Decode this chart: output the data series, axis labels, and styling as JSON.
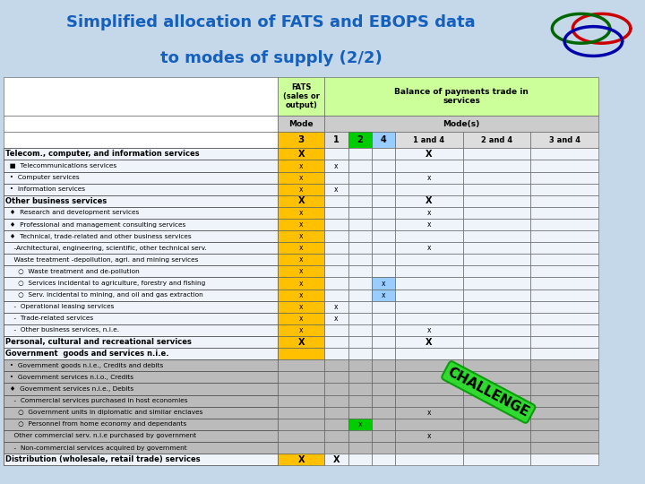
{
  "title_line1": "Simplified allocation of FATS and EBOPS data",
  "title_line2": "to modes of supply (2/2)",
  "title_color": "#1560BD",
  "bg_color": "#C5D8EA",
  "header_green": "#CCFF99",
  "header_gray": "#CCCCCC",
  "col_orange": "#FFC000",
  "col_green_bright": "#00CC00",
  "col_blue_light": "#99CCFF",
  "rows": [
    {
      "label": "Telecom., computer, and information services",
      "bold": true,
      "gray": false,
      "cols": [
        "X",
        "",
        "",
        "",
        "X",
        "",
        ""
      ]
    },
    {
      "label": "  ■  Telecommunications services",
      "bold": false,
      "gray": false,
      "cols": [
        "x",
        "x",
        "",
        "",
        "",
        "",
        ""
      ]
    },
    {
      "label": "  •  Computer services",
      "bold": false,
      "gray": false,
      "cols": [
        "x",
        "",
        "",
        "",
        "x",
        "",
        ""
      ]
    },
    {
      "label": "  •  Information services",
      "bold": false,
      "gray": false,
      "cols": [
        "x",
        "x",
        "",
        "",
        "",
        "",
        ""
      ]
    },
    {
      "label": "Other business services",
      "bold": true,
      "gray": false,
      "cols": [
        "X",
        "",
        "",
        "",
        "X",
        "",
        ""
      ]
    },
    {
      "label": "  ♦  Research and development services",
      "bold": false,
      "gray": false,
      "cols": [
        "x",
        "",
        "",
        "",
        "x",
        "",
        ""
      ]
    },
    {
      "label": "  ♦  Professional and management consulting services",
      "bold": false,
      "gray": false,
      "cols": [
        "x",
        "",
        "",
        "",
        "x",
        "",
        ""
      ]
    },
    {
      "label": "  ♦  Technical, trade-related and other business services",
      "bold": false,
      "gray": false,
      "cols": [
        "x",
        "",
        "",
        "",
        "",
        "",
        ""
      ]
    },
    {
      "label": "    -Architectural, engineering, scientific, other technical serv.",
      "bold": false,
      "gray": false,
      "cols": [
        "x",
        "",
        "",
        "",
        "x",
        "",
        ""
      ]
    },
    {
      "label": "    Waste treatment -depollution, agri. and mining services",
      "bold": false,
      "gray": false,
      "cols": [
        "x",
        "",
        "",
        "",
        "",
        "",
        ""
      ]
    },
    {
      "label": "      ○  Waste treatment and de-pollution",
      "bold": false,
      "gray": false,
      "cols": [
        "x",
        "",
        "",
        "",
        "",
        "",
        ""
      ]
    },
    {
      "label": "      ○  Services incidental to agriculture, forestry and fishing",
      "bold": false,
      "gray": false,
      "cols": [
        "x",
        "",
        "",
        "x",
        "",
        "",
        ""
      ]
    },
    {
      "label": "      ○  Serv. incidental to mining, and oil and gas extraction",
      "bold": false,
      "gray": false,
      "cols": [
        "x",
        "",
        "",
        "x",
        "",
        "",
        ""
      ]
    },
    {
      "label": "    -  Operational leasing services",
      "bold": false,
      "gray": false,
      "cols": [
        "x",
        "x",
        "",
        "",
        "",
        "",
        ""
      ]
    },
    {
      "label": "    -  Trade-related services",
      "bold": false,
      "gray": false,
      "cols": [
        "x",
        "x",
        "",
        "",
        "",
        "",
        ""
      ]
    },
    {
      "label": "    -  Other business services, n.i.e.",
      "bold": false,
      "gray": false,
      "cols": [
        "x",
        "",
        "",
        "",
        "x",
        "",
        ""
      ]
    },
    {
      "label": "Personal, cultural and recreational services",
      "bold": true,
      "gray": false,
      "cols": [
        "X",
        "",
        "",
        "",
        "X",
        "",
        ""
      ]
    },
    {
      "label": "Government  goods and services n.i.e.",
      "bold": true,
      "gray": false,
      "cols": [
        "",
        "",
        "",
        "",
        "",
        "",
        ""
      ]
    },
    {
      "label": "  •  Government goods n.i.e., Credits and debits",
      "bold": false,
      "gray": true,
      "cols": [
        "",
        "",
        "",
        "",
        "",
        "",
        ""
      ]
    },
    {
      "label": "  •  Government services n.i.o., Credits",
      "bold": false,
      "gray": true,
      "cols": [
        "",
        "",
        "",
        "",
        "",
        "",
        ""
      ]
    },
    {
      "label": "  ♦  Government services n.i.e., Debits",
      "bold": false,
      "gray": true,
      "cols": [
        "",
        "",
        "",
        "",
        "",
        "",
        ""
      ]
    },
    {
      "label": "    -  Commercial services purchased in host economies",
      "bold": false,
      "gray": true,
      "cols": [
        "",
        "",
        "",
        "",
        "",
        "",
        ""
      ]
    },
    {
      "label": "      ○  Government units in diplomatic and similar enclaves",
      "bold": false,
      "gray": true,
      "cols": [
        "",
        "",
        "",
        "",
        "x",
        "",
        ""
      ]
    },
    {
      "label": "      ○  Personnel from home economy and dependants",
      "bold": false,
      "gray": true,
      "green2": true,
      "cols": [
        "",
        "",
        "x",
        "",
        "",
        "",
        ""
      ]
    },
    {
      "label": "    Other commercial serv. n.i.e purchased by government",
      "bold": false,
      "gray": true,
      "cols": [
        "",
        "",
        "",
        "",
        "x",
        "",
        ""
      ]
    },
    {
      "label": "    -  Non-commercial services acquired by government",
      "bold": false,
      "gray": true,
      "cols": [
        "",
        "",
        "",
        "",
        "",
        "",
        ""
      ]
    },
    {
      "label": "Distribution (wholesale, retail trade) services",
      "bold": true,
      "gray": false,
      "cols": [
        "X",
        "X",
        "",
        "",
        "",
        "",
        ""
      ]
    }
  ]
}
